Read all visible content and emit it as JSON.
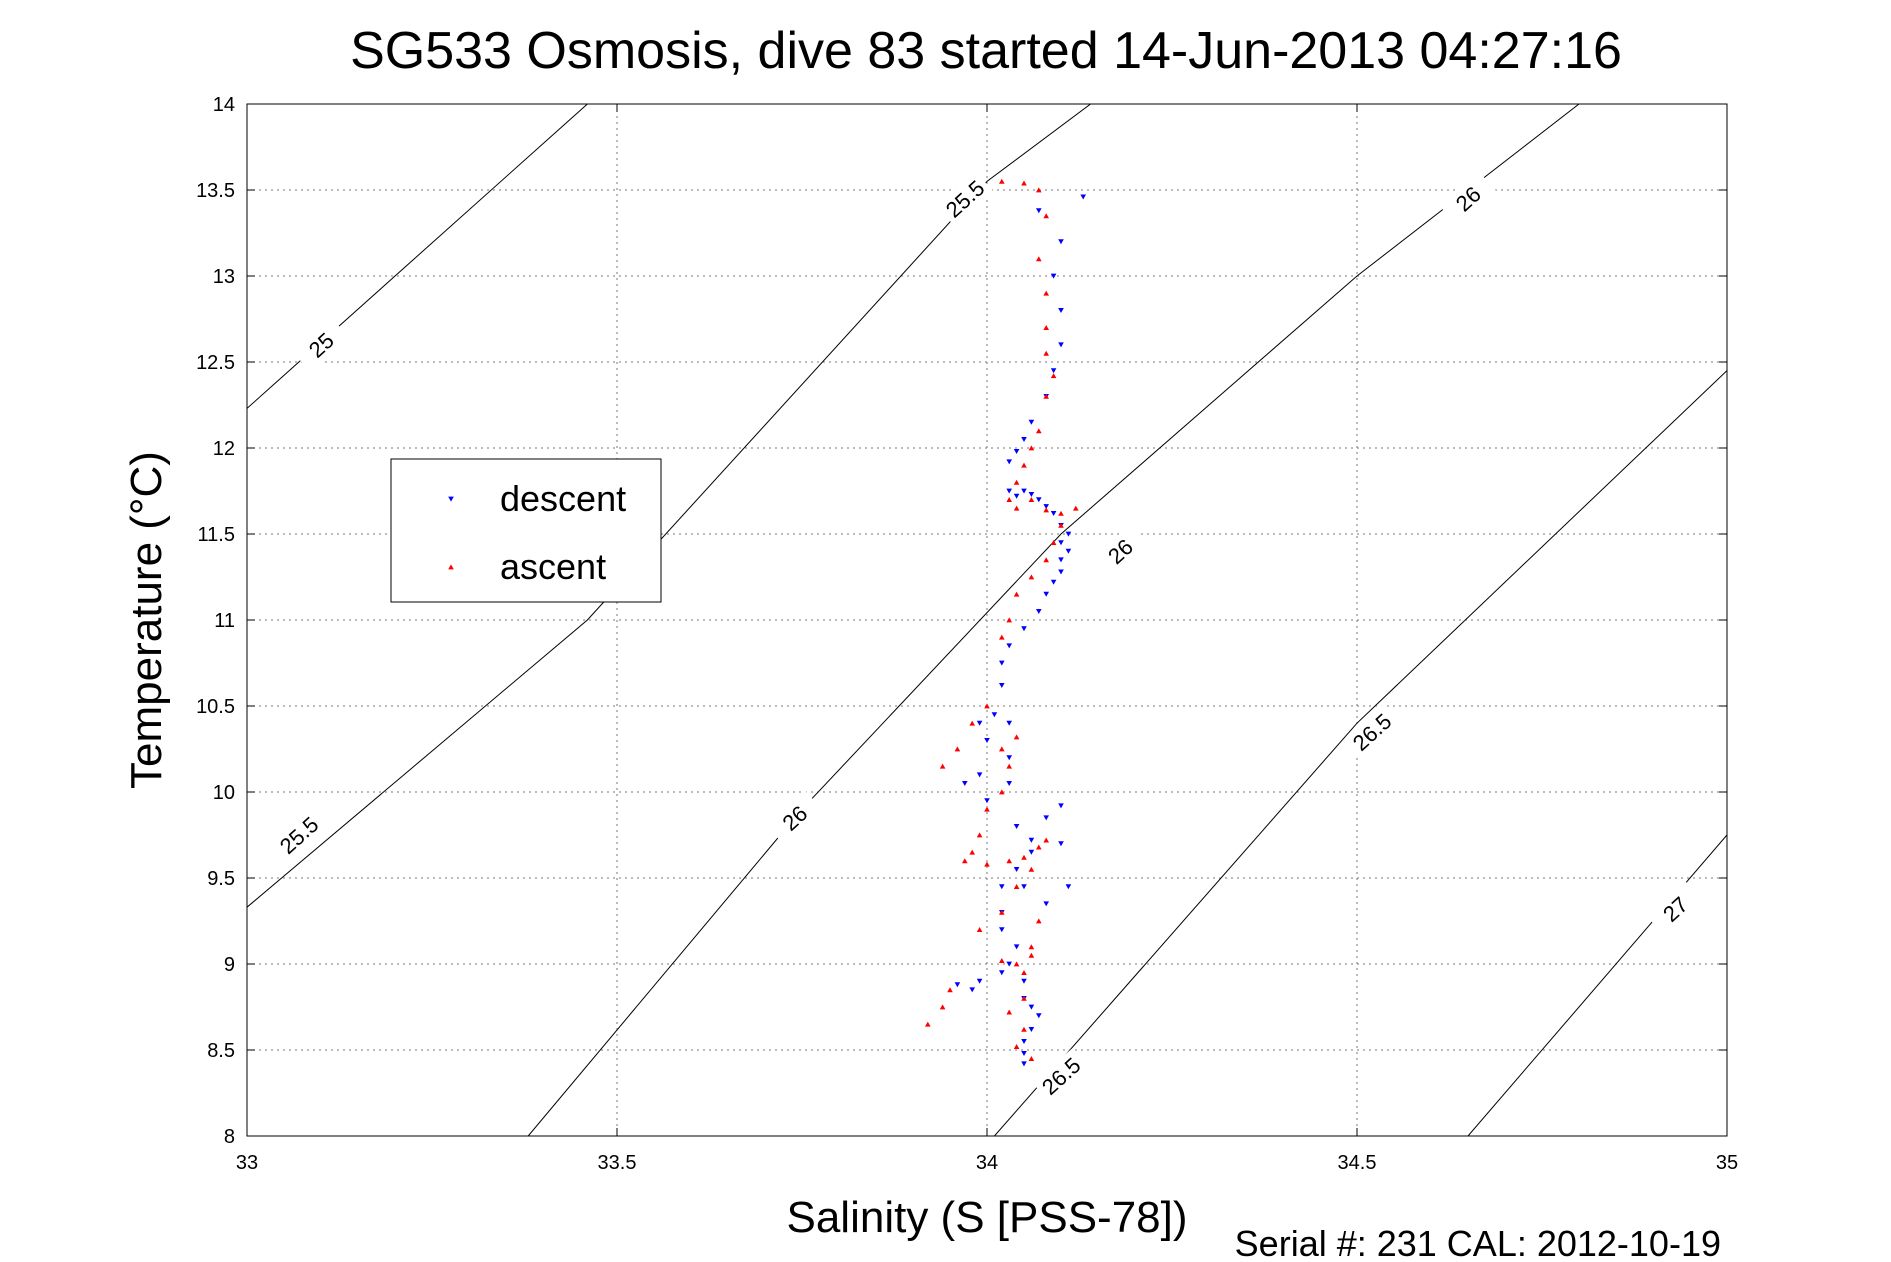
{
  "chart_data": {
    "type": "scatter",
    "title": "SG533 Osmosis, dive 83 started 14-Jun-2013 04:27:16",
    "xlabel": "Salinity (S [PSS-78])",
    "ylabel": "Temperature (°C)",
    "xlim": [
      33,
      35
    ],
    "ylim": [
      8,
      14
    ],
    "xticks": [
      "33",
      "33.5",
      "34",
      "34.5",
      "35"
    ],
    "yticks": [
      "8",
      "8.5",
      "9",
      "9.5",
      "10",
      "10.5",
      "11",
      "11.5",
      "12",
      "12.5",
      "13",
      "13.5",
      "14"
    ],
    "grid": true,
    "legend_position": "left",
    "footer": "Serial #: 231  CAL: 2012-10-19",
    "contours": [
      {
        "label": "25",
        "points": [
          [
            33.0,
            12.23
          ],
          [
            33.46,
            14.0
          ]
        ],
        "label_at": [
          33.1,
          12.6
        ]
      },
      {
        "label": "25.5",
        "points": [
          [
            33.0,
            9.33
          ],
          [
            33.46,
            11.0
          ],
          [
            34.0,
            13.55
          ],
          [
            34.14,
            14.0
          ]
        ],
        "label_at": [
          33.07,
          9.75
        ]
      },
      {
        "label": "25.5",
        "points": [],
        "label_at": [
          33.97,
          13.45
        ]
      },
      {
        "label": "26",
        "points": [
          [
            33.38,
            8.0
          ],
          [
            33.75,
            9.9
          ],
          [
            34.1,
            11.5
          ],
          [
            34.5,
            13.0
          ],
          [
            34.8,
            14.0
          ]
        ],
        "label_at": [
          33.74,
          9.85
        ]
      },
      {
        "label": "26",
        "points": [],
        "label_at": [
          34.18,
          11.4
        ]
      },
      {
        "label": "26",
        "points": [],
        "label_at": [
          34.65,
          13.45
        ]
      },
      {
        "label": "26.5",
        "points": [
          [
            34.01,
            8.0
          ],
          [
            34.5,
            10.4
          ],
          [
            35.0,
            12.45
          ]
        ],
        "label_at": [
          34.1,
          8.35
        ]
      },
      {
        "label": "26.5",
        "points": [],
        "label_at": [
          34.52,
          10.35
        ]
      },
      {
        "label": "27",
        "points": [
          [
            34.65,
            8.0
          ],
          [
            35.0,
            9.75
          ]
        ],
        "label_at": [
          34.93,
          9.32
        ]
      }
    ],
    "series": [
      {
        "name": "descent",
        "color": "#0000ff",
        "marker": "triangle-down",
        "points": [
          [
            34.13,
            13.46
          ],
          [
            34.07,
            13.38
          ],
          [
            34.1,
            13.2
          ],
          [
            34.09,
            13.0
          ],
          [
            34.1,
            12.8
          ],
          [
            34.1,
            12.6
          ],
          [
            34.09,
            12.45
          ],
          [
            34.08,
            12.3
          ],
          [
            34.06,
            12.15
          ],
          [
            34.05,
            12.05
          ],
          [
            34.04,
            11.98
          ],
          [
            34.03,
            11.92
          ],
          [
            34.03,
            11.75
          ],
          [
            34.04,
            11.72
          ],
          [
            34.05,
            11.75
          ],
          [
            34.06,
            11.73
          ],
          [
            34.07,
            11.7
          ],
          [
            34.08,
            11.66
          ],
          [
            34.09,
            11.62
          ],
          [
            34.1,
            11.55
          ],
          [
            34.11,
            11.5
          ],
          [
            34.1,
            11.45
          ],
          [
            34.11,
            11.4
          ],
          [
            34.1,
            11.35
          ],
          [
            34.1,
            11.28
          ],
          [
            34.09,
            11.22
          ],
          [
            34.08,
            11.15
          ],
          [
            34.07,
            11.05
          ],
          [
            34.05,
            10.95
          ],
          [
            34.03,
            10.85
          ],
          [
            34.02,
            10.75
          ],
          [
            34.02,
            10.62
          ],
          [
            34.01,
            10.45
          ],
          [
            33.99,
            10.4
          ],
          [
            34.0,
            10.3
          ],
          [
            34.03,
            10.4
          ],
          [
            34.03,
            10.2
          ],
          [
            34.03,
            10.05
          ],
          [
            33.99,
            10.1
          ],
          [
            33.97,
            10.05
          ],
          [
            34.0,
            9.95
          ],
          [
            34.04,
            9.8
          ],
          [
            34.06,
            9.72
          ],
          [
            34.08,
            9.85
          ],
          [
            34.1,
            9.92
          ],
          [
            34.1,
            9.7
          ],
          [
            34.06,
            9.65
          ],
          [
            34.04,
            9.55
          ],
          [
            34.02,
            9.45
          ],
          [
            34.05,
            9.45
          ],
          [
            34.08,
            9.35
          ],
          [
            34.11,
            9.45
          ],
          [
            34.02,
            9.3
          ],
          [
            34.02,
            9.2
          ],
          [
            34.04,
            9.1
          ],
          [
            34.03,
            9.0
          ],
          [
            34.02,
            8.95
          ],
          [
            34.05,
            8.9
          ],
          [
            33.98,
            8.85
          ],
          [
            33.96,
            8.88
          ],
          [
            33.99,
            8.9
          ],
          [
            34.05,
            8.8
          ],
          [
            34.06,
            8.75
          ],
          [
            34.07,
            8.7
          ],
          [
            34.06,
            8.62
          ],
          [
            34.05,
            8.55
          ],
          [
            34.05,
            8.48
          ],
          [
            34.05,
            8.42
          ]
        ]
      },
      {
        "name": "ascent",
        "color": "#ff0000",
        "marker": "triangle-up",
        "points": [
          [
            34.02,
            13.55
          ],
          [
            34.05,
            13.54
          ],
          [
            34.07,
            13.5
          ],
          [
            34.08,
            13.35
          ],
          [
            34.07,
            13.1
          ],
          [
            34.08,
            12.9
          ],
          [
            34.08,
            12.7
          ],
          [
            34.08,
            12.55
          ],
          [
            34.09,
            12.42
          ],
          [
            34.08,
            12.3
          ],
          [
            34.07,
            12.1
          ],
          [
            34.06,
            12.0
          ],
          [
            34.05,
            11.9
          ],
          [
            34.04,
            11.8
          ],
          [
            34.03,
            11.7
          ],
          [
            34.04,
            11.65
          ],
          [
            34.06,
            11.7
          ],
          [
            34.08,
            11.64
          ],
          [
            34.1,
            11.62
          ],
          [
            34.12,
            11.65
          ],
          [
            34.1,
            11.55
          ],
          [
            34.09,
            11.45
          ],
          [
            34.08,
            11.35
          ],
          [
            34.06,
            11.25
          ],
          [
            34.04,
            11.15
          ],
          [
            34.03,
            11.0
          ],
          [
            34.02,
            10.9
          ],
          [
            34.0,
            10.5
          ],
          [
            33.98,
            10.4
          ],
          [
            33.96,
            10.25
          ],
          [
            33.94,
            10.15
          ],
          [
            34.02,
            10.25
          ],
          [
            34.04,
            10.32
          ],
          [
            34.03,
            10.15
          ],
          [
            34.02,
            10.0
          ],
          [
            34.0,
            9.9
          ],
          [
            33.99,
            9.75
          ],
          [
            33.98,
            9.65
          ],
          [
            33.97,
            9.6
          ],
          [
            34.0,
            9.58
          ],
          [
            34.03,
            9.6
          ],
          [
            34.05,
            9.62
          ],
          [
            34.07,
            9.68
          ],
          [
            34.08,
            9.72
          ],
          [
            34.06,
            9.55
          ],
          [
            34.04,
            9.45
          ],
          [
            34.02,
            9.3
          ],
          [
            33.99,
            9.2
          ],
          [
            34.06,
            9.05
          ],
          [
            34.04,
            9.0
          ],
          [
            34.02,
            9.02
          ],
          [
            34.05,
            8.95
          ],
          [
            33.95,
            8.85
          ],
          [
            33.94,
            8.75
          ],
          [
            33.92,
            8.65
          ],
          [
            34.03,
            8.72
          ],
          [
            34.05,
            8.62
          ],
          [
            34.04,
            8.52
          ],
          [
            34.06,
            8.45
          ],
          [
            34.05,
            8.8
          ],
          [
            34.06,
            9.1
          ],
          [
            34.07,
            9.25
          ]
        ]
      }
    ]
  }
}
